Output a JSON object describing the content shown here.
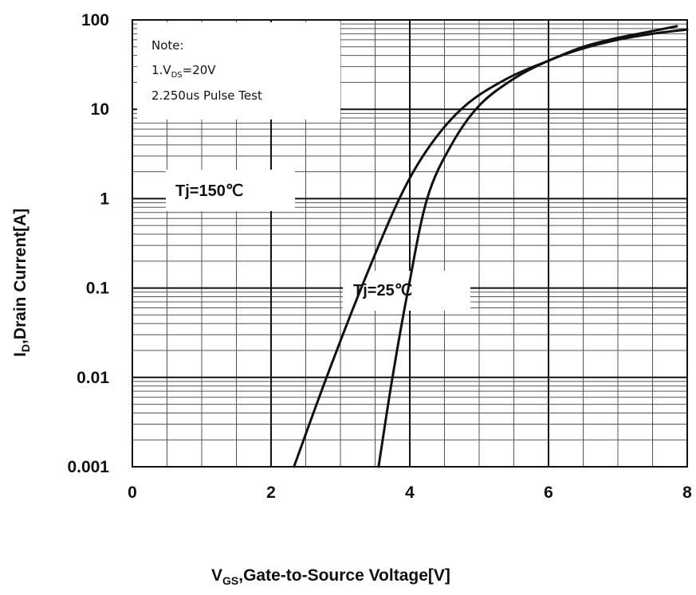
{
  "chart_data": {
    "type": "line",
    "title": "",
    "x_axis": {
      "label_main": "V",
      "label_sub": "GS",
      "label_rest": ",Gate-to-Source  Voltage[V]",
      "range": [
        0,
        8
      ],
      "ticks": [
        "0",
        "2",
        "4",
        "6",
        "8"
      ]
    },
    "y_axis": {
      "label_main": "I",
      "label_sub": "D",
      "label_rest": ",Drain Current[A]",
      "scale": "log",
      "range": [
        0.001,
        100
      ],
      "ticks": [
        "0.001",
        "0.01",
        "0.1",
        "1",
        "10",
        "100"
      ]
    },
    "grid": true,
    "note": {
      "line1": "Note:",
      "line2_main": "1.V",
      "line2_sub": "DS",
      "line2_rest": "=20V",
      "line3": "2.250us Pulse Test"
    },
    "series": [
      {
        "name": "Tj=150℃",
        "points": [
          [
            2.33,
            0.001
          ],
          [
            2.8,
            0.01
          ],
          [
            3.3,
            0.1
          ],
          [
            3.85,
            1
          ],
          [
            4.3,
            4
          ],
          [
            4.8,
            11
          ],
          [
            5.4,
            22
          ],
          [
            6.0,
            35
          ],
          [
            6.5,
            50
          ],
          [
            7.0,
            63
          ],
          [
            7.5,
            75
          ],
          [
            7.85,
            85
          ]
        ]
      },
      {
        "name": "Tj=25℃",
        "points": [
          [
            3.55,
            0.001
          ],
          [
            3.75,
            0.01
          ],
          [
            3.98,
            0.1
          ],
          [
            4.25,
            1
          ],
          [
            4.6,
            4
          ],
          [
            5.0,
            11
          ],
          [
            5.5,
            22
          ],
          [
            6.0,
            35
          ],
          [
            6.5,
            48
          ],
          [
            7.0,
            60
          ],
          [
            7.5,
            70
          ],
          [
            8.0,
            78
          ]
        ]
      }
    ]
  }
}
